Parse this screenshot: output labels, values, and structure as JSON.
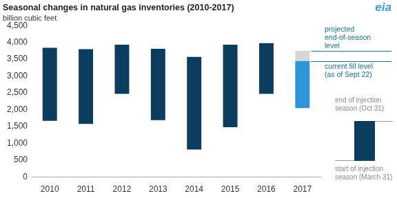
{
  "chart_data": {
    "type": "bar",
    "title": "Seasonal changes in natural gas inventories (2010-2017)",
    "subtitle": "billion cubic feet",
    "logo": "eia",
    "categories": [
      "2010",
      "2011",
      "2012",
      "2013",
      "2014",
      "2015",
      "2016",
      "2017"
    ],
    "series": [
      {
        "color": "#0c3c5e",
        "low": [
          1670,
          1580,
          2470,
          1690,
          820,
          1480,
          2470,
          null
        ],
        "high": [
          3840,
          3800,
          3930,
          3810,
          3570,
          3930,
          3980,
          null
        ]
      },
      {
        "color": "#2e95d6",
        "low": [
          null,
          null,
          null,
          null,
          null,
          null,
          null,
          2050
        ],
        "high": [
          null,
          null,
          null,
          null,
          null,
          null,
          null,
          3450
        ]
      },
      {
        "color": "#d6d6d6",
        "low": [
          null,
          null,
          null,
          null,
          null,
          null,
          null,
          3450
        ],
        "high": [
          null,
          null,
          null,
          null,
          null,
          null,
          null,
          3750
        ]
      }
    ],
    "ylim": [
      0,
      4500
    ],
    "yticks": [
      0,
      500,
      {
        "value": 1000,
        "label": "1,000"
      },
      {
        "value": 1500,
        "label": "1,500"
      },
      {
        "value": 2000,
        "label": "2,000"
      },
      {
        "value": 2500,
        "label": "2,500"
      },
      {
        "value": 3000,
        "label": "3,000"
      },
      {
        "value": 3500,
        "label": "3,500"
      },
      {
        "value": 4000,
        "label": "4,000"
      },
      {
        "value": 4500,
        "label": "4,500"
      }
    ],
    "grid": false,
    "annotations": [
      {
        "lines": [
          "projected",
          "end-of-season",
          "level"
        ],
        "value": 3750,
        "color": "#1b6f8f"
      },
      {
        "lines": [
          "current fill level",
          "(as of Sept 22)"
        ],
        "value": 3450,
        "color": "#1b6f8f"
      }
    ],
    "key": {
      "color": "#0c3c5e",
      "top_lines": [
        "end of injection",
        "season (Oct 31)"
      ],
      "bottom_lines": [
        "start of injection",
        "season (March 31)"
      ]
    }
  }
}
